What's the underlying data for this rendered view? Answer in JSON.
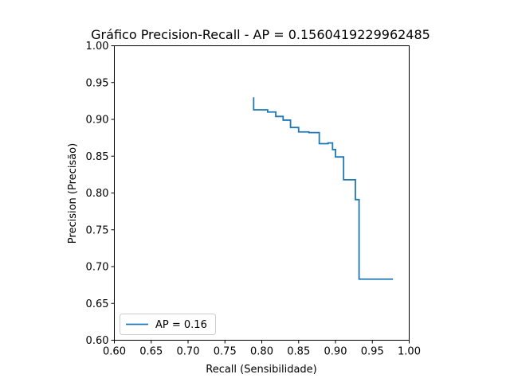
{
  "chart_data": {
    "type": "line",
    "drawstyle": "steps-post",
    "title": "Gráfico Precision-Recall - AP = 0.1560419229962485",
    "xlabel": "Recall (Sensibilidade)",
    "ylabel": "Precision (Precisão)",
    "xlim": [
      0.6,
      1.0
    ],
    "ylim": [
      0.6,
      1.0
    ],
    "xticks": [
      "0.60",
      "0.65",
      "0.70",
      "0.75",
      "0.80",
      "0.85",
      "0.90",
      "0.95",
      "1.00"
    ],
    "yticks": [
      "0.60",
      "0.65",
      "0.70",
      "0.75",
      "0.80",
      "0.85",
      "0.90",
      "0.95",
      "1.00"
    ],
    "grid": false,
    "legend_position": "lower-left",
    "series": [
      {
        "name": "AP = 0.16",
        "color": "#1f77b4",
        "x": [
          0.789,
          0.789,
          0.808,
          0.819,
          0.829,
          0.839,
          0.85,
          0.864,
          0.878,
          0.89,
          0.896,
          0.9,
          0.911,
          0.927,
          0.932,
          0.978
        ],
        "y": [
          0.93,
          0.913,
          0.91,
          0.904,
          0.899,
          0.889,
          0.883,
          0.882,
          0.867,
          0.868,
          0.859,
          0.849,
          0.818,
          0.791,
          0.683,
          0.683
        ]
      }
    ]
  }
}
